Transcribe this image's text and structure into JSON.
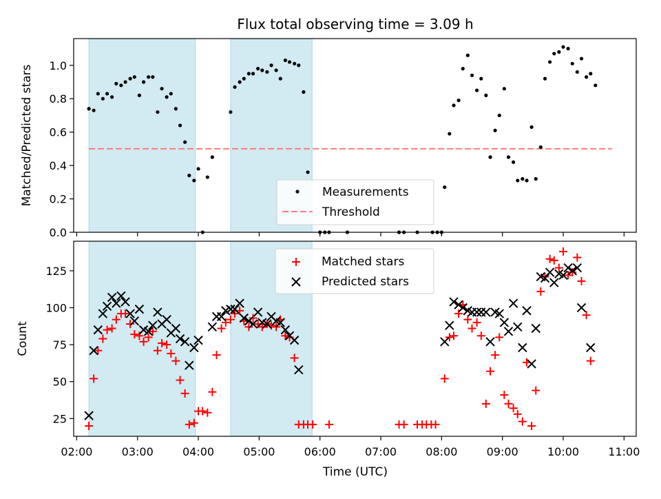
{
  "title": "Flux total observing time = 3.09 h",
  "colors": {
    "measurement": "#000000",
    "threshold": "#ff7a7a",
    "matched": "#ff0000",
    "predicted": "#000000",
    "shade": "#add8e6"
  },
  "chart_data": [
    {
      "type": "scatter",
      "title": "Flux total observing time = 3.09 h",
      "xlabel": "",
      "ylabel": "Matched/Predicted stars",
      "x_unit": "hours UTC",
      "xlim": [
        1.95,
        11.2
      ],
      "ylim": [
        0,
        1.16
      ],
      "yticks": [
        0.0,
        0.2,
        0.4,
        0.6,
        0.8,
        1.0
      ],
      "ytick_labels": [
        "0.0",
        "0.2",
        "0.4",
        "0.6",
        "0.8",
        "1.0"
      ],
      "grid": false,
      "legend_position": "lower-center",
      "shaded_intervals": [
        [
          2.2,
          3.95
        ],
        [
          4.53,
          5.87
        ]
      ],
      "series": [
        {
          "name": "Measurements",
          "marker": "dot",
          "points": [
            [
              2.2,
              0.74
            ],
            [
              2.28,
              0.73
            ],
            [
              2.35,
              0.83
            ],
            [
              2.43,
              0.8
            ],
            [
              2.5,
              0.83
            ],
            [
              2.58,
              0.81
            ],
            [
              2.65,
              0.89
            ],
            [
              2.73,
              0.88
            ],
            [
              2.8,
              0.9
            ],
            [
              2.88,
              0.92
            ],
            [
              2.95,
              0.93
            ],
            [
              3.03,
              0.82
            ],
            [
              3.1,
              0.9
            ],
            [
              3.18,
              0.93
            ],
            [
              3.25,
              0.93
            ],
            [
              3.33,
              0.72
            ],
            [
              3.4,
              0.86
            ],
            [
              3.48,
              0.81
            ],
            [
              3.55,
              0.83
            ],
            [
              3.63,
              0.74
            ],
            [
              3.7,
              0.64
            ],
            [
              3.78,
              0.54
            ],
            [
              3.85,
              0.34
            ],
            [
              3.93,
              0.31
            ],
            [
              4.0,
              0.38
            ],
            [
              4.07,
              0.0
            ],
            [
              4.15,
              0.33
            ],
            [
              4.23,
              0.45
            ],
            [
              4.53,
              0.72
            ],
            [
              4.6,
              0.87
            ],
            [
              4.68,
              0.9
            ],
            [
              4.75,
              0.92
            ],
            [
              4.83,
              0.95
            ],
            [
              4.9,
              0.95
            ],
            [
              4.98,
              0.98
            ],
            [
              5.05,
              0.97
            ],
            [
              5.13,
              0.96
            ],
            [
              5.2,
              1.0
            ],
            [
              5.28,
              0.97
            ],
            [
              5.35,
              0.92
            ],
            [
              5.43,
              1.03
            ],
            [
              5.5,
              1.02
            ],
            [
              5.58,
              1.01
            ],
            [
              5.65,
              1.0
            ],
            [
              5.73,
              0.84
            ],
            [
              5.8,
              0.36
            ],
            [
              6.0,
              0.0
            ],
            [
              6.08,
              0.0
            ],
            [
              6.15,
              0.0
            ],
            [
              6.45,
              0.0
            ],
            [
              7.3,
              0.0
            ],
            [
              7.38,
              0.0
            ],
            [
              7.6,
              0.0
            ],
            [
              7.85,
              0.0
            ],
            [
              7.93,
              0.0
            ],
            [
              8.0,
              0.0
            ],
            [
              8.05,
              0.27
            ],
            [
              8.13,
              0.59
            ],
            [
              8.2,
              0.76
            ],
            [
              8.28,
              0.79
            ],
            [
              8.35,
              0.98
            ],
            [
              8.43,
              1.06
            ],
            [
              8.5,
              0.94
            ],
            [
              8.58,
              0.85
            ],
            [
              8.65,
              0.92
            ],
            [
              8.73,
              0.82
            ],
            [
              8.8,
              0.45
            ],
            [
              8.88,
              0.61
            ],
            [
              8.95,
              0.7
            ],
            [
              9.03,
              0.86
            ],
            [
              9.1,
              0.45
            ],
            [
              9.18,
              0.42
            ],
            [
              9.25,
              0.31
            ],
            [
              9.33,
              0.32
            ],
            [
              9.4,
              0.31
            ],
            [
              9.48,
              0.63
            ],
            [
              9.55,
              0.32
            ],
            [
              9.63,
              0.51
            ],
            [
              9.7,
              0.92
            ],
            [
              9.78,
              1.02
            ],
            [
              9.85,
              1.07
            ],
            [
              9.93,
              1.08
            ],
            [
              10.0,
              1.11
            ],
            [
              10.08,
              1.1
            ],
            [
              10.15,
              1.01
            ],
            [
              10.23,
              0.96
            ],
            [
              10.3,
              1.04
            ],
            [
              10.38,
              0.93
            ],
            [
              10.45,
              0.95
            ],
            [
              10.53,
              0.88
            ]
          ]
        },
        {
          "name": "Threshold",
          "style": "dashed",
          "x": [
            2.2,
            10.8
          ],
          "y": [
            0.5,
            0.5
          ]
        }
      ]
    },
    {
      "type": "scatter",
      "title": "",
      "xlabel": "Time (UTC)",
      "ylabel": "Count",
      "x_unit": "hours UTC",
      "xlim": [
        1.95,
        11.2
      ],
      "ylim": [
        13,
        145
      ],
      "yticks": [
        25,
        50,
        75,
        100,
        125
      ],
      "ytick_labels": [
        "25",
        "50",
        "75",
        "100",
        "125"
      ],
      "xticks": [
        2,
        3,
        4,
        5,
        6,
        7,
        8,
        9,
        10,
        11
      ],
      "xtick_labels": [
        "02:00",
        "03:00",
        "04:00",
        "05:00",
        "06:00",
        "07:00",
        "08:00",
        "09:00",
        "10:00",
        "11:00"
      ],
      "grid": false,
      "legend_position": "upper-center",
      "shaded_intervals": [
        [
          2.2,
          3.95
        ],
        [
          4.53,
          5.87
        ]
      ],
      "series": [
        {
          "name": "Matched stars",
          "marker": "plus",
          "points": [
            [
              2.2,
              20
            ],
            [
              2.28,
              52
            ],
            [
              2.35,
              71
            ],
            [
              2.43,
              79
            ],
            [
              2.5,
              85
            ],
            [
              2.58,
              86
            ],
            [
              2.65,
              92
            ],
            [
              2.73,
              96
            ],
            [
              2.8,
              96
            ],
            [
              2.88,
              89
            ],
            [
              2.95,
              82
            ],
            [
              3.03,
              81
            ],
            [
              3.1,
              77
            ],
            [
              3.18,
              80
            ],
            [
              3.25,
              84
            ],
            [
              3.33,
              71
            ],
            [
              3.4,
              76
            ],
            [
              3.48,
              75
            ],
            [
              3.55,
              69
            ],
            [
              3.63,
              64
            ],
            [
              3.7,
              51
            ],
            [
              3.78,
              42
            ],
            [
              3.85,
              21
            ],
            [
              3.93,
              22
            ],
            [
              4.0,
              30
            ],
            [
              4.07,
              30
            ],
            [
              4.15,
              29
            ],
            [
              4.23,
              43
            ],
            [
              4.3,
              68
            ],
            [
              4.38,
              86
            ],
            [
              4.45,
              90
            ],
            [
              4.53,
              92
            ],
            [
              4.6,
              96
            ],
            [
              4.68,
              98
            ],
            [
              4.75,
              91
            ],
            [
              4.83,
              87
            ],
            [
              4.9,
              93
            ],
            [
              4.98,
              89
            ],
            [
              5.05,
              87
            ],
            [
              5.13,
              89
            ],
            [
              5.2,
              88
            ],
            [
              5.28,
              87
            ],
            [
              5.35,
              92
            ],
            [
              5.43,
              81
            ],
            [
              5.5,
              80
            ],
            [
              5.58,
              66
            ],
            [
              5.65,
              21
            ],
            [
              5.73,
              21
            ],
            [
              5.8,
              21
            ],
            [
              5.88,
              21
            ],
            [
              6.15,
              21
            ],
            [
              7.3,
              21
            ],
            [
              7.38,
              21
            ],
            [
              7.6,
              21
            ],
            [
              7.68,
              21
            ],
            [
              7.75,
              21
            ],
            [
              7.83,
              21
            ],
            [
              7.9,
              21
            ],
            [
              8.05,
              52
            ],
            [
              8.13,
              80
            ],
            [
              8.2,
              81
            ],
            [
              8.28,
              96
            ],
            [
              8.35,
              102
            ],
            [
              8.43,
              92
            ],
            [
              8.5,
              86
            ],
            [
              8.58,
              90
            ],
            [
              8.65,
              81
            ],
            [
              8.73,
              35
            ],
            [
              8.8,
              57
            ],
            [
              8.88,
              68
            ],
            [
              8.95,
              80
            ],
            [
              9.03,
              41
            ],
            [
              9.1,
              35
            ],
            [
              9.18,
              32
            ],
            [
              9.25,
              28
            ],
            [
              9.33,
              23
            ],
            [
              9.4,
              63
            ],
            [
              9.48,
              20
            ],
            [
              9.55,
              44
            ],
            [
              9.63,
              111
            ],
            [
              9.7,
              121
            ],
            [
              9.78,
              133
            ],
            [
              9.85,
              132
            ],
            [
              9.93,
              127
            ],
            [
              10.0,
              138
            ],
            [
              10.08,
              122
            ],
            [
              10.15,
              124
            ],
            [
              10.23,
              134
            ],
            [
              10.3,
              118
            ],
            [
              10.38,
              95
            ],
            [
              10.45,
              64
            ]
          ]
        },
        {
          "name": "Predicted stars",
          "marker": "x",
          "points": [
            [
              2.2,
              27
            ],
            [
              2.28,
              71
            ],
            [
              2.35,
              85
            ],
            [
              2.43,
              96
            ],
            [
              2.5,
              101
            ],
            [
              2.58,
              107
            ],
            [
              2.65,
              103
            ],
            [
              2.73,
              108
            ],
            [
              2.8,
              104
            ],
            [
              2.88,
              96
            ],
            [
              2.95,
              91
            ],
            [
              3.03,
              99
            ],
            [
              3.1,
              85
            ],
            [
              3.18,
              84
            ],
            [
              3.25,
              88
            ],
            [
              3.33,
              97
            ],
            [
              3.4,
              89
            ],
            [
              3.48,
              92
            ],
            [
              3.55,
              83
            ],
            [
              3.63,
              86
            ],
            [
              3.7,
              79
            ],
            [
              3.78,
              77
            ],
            [
              3.85,
              61
            ],
            [
              3.93,
              73
            ],
            [
              4.0,
              78
            ],
            [
              4.23,
              87
            ],
            [
              4.3,
              94
            ],
            [
              4.38,
              94
            ],
            [
              4.45,
              98
            ],
            [
              4.53,
              99
            ],
            [
              4.6,
              99
            ],
            [
              4.68,
              103
            ],
            [
              4.75,
              93
            ],
            [
              4.83,
              91
            ],
            [
              4.9,
              89
            ],
            [
              4.98,
              97
            ],
            [
              5.05,
              90
            ],
            [
              5.13,
              89
            ],
            [
              5.2,
              94
            ],
            [
              5.28,
              91
            ],
            [
              5.35,
              90
            ],
            [
              5.43,
              85
            ],
            [
              5.5,
              81
            ],
            [
              5.58,
              78
            ],
            [
              5.65,
              58
            ],
            [
              8.05,
              77
            ],
            [
              8.13,
              88
            ],
            [
              8.2,
              104
            ],
            [
              8.28,
              102
            ],
            [
              8.35,
              100
            ],
            [
              8.43,
              98
            ],
            [
              8.5,
              97
            ],
            [
              8.58,
              97
            ],
            [
              8.65,
              97
            ],
            [
              8.73,
              97
            ],
            [
              8.8,
              77
            ],
            [
              8.88,
              97
            ],
            [
              8.95,
              96
            ],
            [
              9.03,
              90
            ],
            [
              9.1,
              84
            ],
            [
              9.18,
              103
            ],
            [
              9.25,
              87
            ],
            [
              9.33,
              73
            ],
            [
              9.4,
              98
            ],
            [
              9.48,
              62
            ],
            [
              9.55,
              86
            ],
            [
              9.63,
              121
            ],
            [
              9.7,
              120
            ],
            [
              9.78,
              124
            ],
            [
              9.85,
              117
            ],
            [
              9.93,
              123
            ],
            [
              10.0,
              122
            ],
            [
              10.08,
              127
            ],
            [
              10.15,
              125
            ],
            [
              10.23,
              127
            ],
            [
              10.3,
              100
            ],
            [
              10.45,
              73
            ]
          ]
        }
      ]
    }
  ]
}
